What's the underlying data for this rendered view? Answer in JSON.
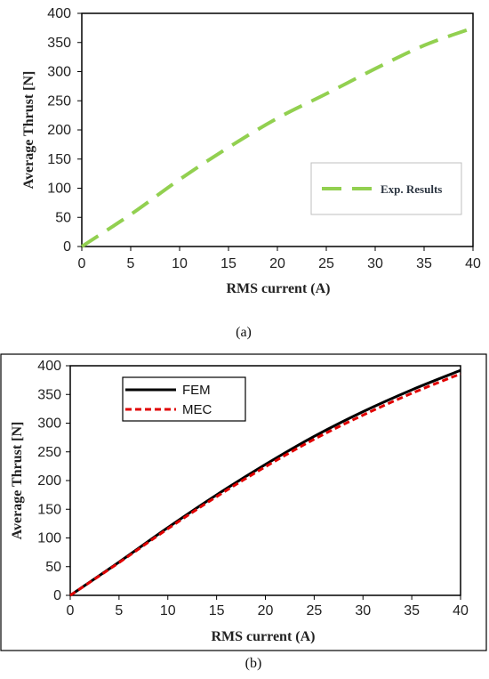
{
  "chart_data": [
    {
      "type": "line",
      "panel_label": "(a)",
      "xlabel": "RMS current (A)",
      "ylabel": "Average Thrust [N]",
      "xlim": [
        0,
        40
      ],
      "ylim": [
        0,
        400
      ],
      "x_ticks": [
        0,
        5,
        10,
        15,
        20,
        25,
        30,
        35,
        40
      ],
      "y_ticks": [
        0,
        50,
        100,
        150,
        200,
        250,
        300,
        350,
        400
      ],
      "grid": false,
      "legend_position": "bottom-right",
      "colors": {
        "exp": "#92d050"
      },
      "series": [
        {
          "name": "Exp. Results",
          "x": [
            0,
            5,
            10,
            15,
            20,
            25,
            30,
            35,
            40
          ],
          "y": [
            0,
            55,
            115,
            170,
            220,
            262,
            305,
            345,
            375
          ]
        }
      ]
    },
    {
      "type": "line",
      "panel_label": "(b)",
      "xlabel": "RMS current (A)",
      "ylabel": "Average Thrust  [N]",
      "xlim": [
        0,
        40
      ],
      "ylim": [
        0,
        400
      ],
      "x_ticks": [
        0,
        5,
        10,
        15,
        20,
        25,
        30,
        35,
        40
      ],
      "y_ticks": [
        0,
        50,
        100,
        150,
        200,
        250,
        300,
        350,
        400
      ],
      "grid": false,
      "legend_position": "top-left",
      "colors": {
        "fem": "#000000",
        "mec": "#e00000"
      },
      "series": [
        {
          "name": "FEM",
          "x": [
            0,
            5,
            10,
            15,
            20,
            25,
            30,
            35,
            40
          ],
          "y": [
            0,
            58,
            118,
            175,
            228,
            277,
            320,
            358,
            392
          ]
        },
        {
          "name": "MEC",
          "x": [
            0,
            5,
            10,
            15,
            20,
            25,
            30,
            35,
            40
          ],
          "y": [
            0,
            57,
            116,
            172,
            224,
            272,
            314,
            352,
            386
          ]
        }
      ]
    }
  ]
}
